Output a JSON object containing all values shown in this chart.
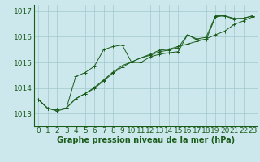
{
  "bg_color": "#cce8ec",
  "grid_color": "#a0c8cc",
  "line_color": "#1a5c1a",
  "marker_color": "#1a5c1a",
  "xlabel": "Graphe pression niveau de la mer (hPa)",
  "xlabel_fontsize": 7.0,
  "tick_fontsize": 6.5,
  "ylim": [
    1012.5,
    1017.25
  ],
  "xlim": [
    -0.5,
    23.5
  ],
  "yticks": [
    1013,
    1014,
    1015,
    1016,
    1017
  ],
  "xticks": [
    0,
    1,
    2,
    3,
    4,
    5,
    6,
    7,
    8,
    9,
    10,
    11,
    12,
    13,
    14,
    15,
    16,
    17,
    18,
    19,
    20,
    21,
    22,
    23
  ],
  "series1_x": [
    0,
    1,
    2,
    3,
    4,
    5,
    6,
    7,
    8,
    9,
    10,
    11,
    12,
    13,
    14,
    15,
    16,
    17,
    18,
    19,
    20,
    21,
    22,
    23
  ],
  "series1_y": [
    1013.55,
    1013.2,
    1013.1,
    1013.2,
    1014.45,
    1014.6,
    1014.85,
    1015.5,
    1015.62,
    1015.68,
    1015.0,
    1015.0,
    1015.22,
    1015.32,
    1015.38,
    1015.42,
    1016.08,
    1015.88,
    1015.88,
    1016.78,
    1016.82,
    1016.72,
    1016.72,
    1016.82
  ],
  "series2_x": [
    0,
    1,
    2,
    3,
    4,
    5,
    6,
    7,
    8,
    9,
    10,
    11,
    12,
    13,
    14,
    15,
    16,
    17,
    18,
    19,
    20,
    21,
    22,
    23
  ],
  "series2_y": [
    1013.55,
    1013.2,
    1013.15,
    1013.22,
    1013.58,
    1013.78,
    1013.98,
    1014.28,
    1014.58,
    1014.82,
    1015.02,
    1015.18,
    1015.32,
    1015.48,
    1015.52,
    1015.62,
    1015.72,
    1015.82,
    1015.92,
    1016.08,
    1016.22,
    1016.48,
    1016.62,
    1016.78
  ],
  "series3_x": [
    0,
    1,
    2,
    3,
    4,
    5,
    6,
    7,
    8,
    9,
    10,
    11,
    12,
    13,
    14,
    15,
    16,
    17,
    18,
    19,
    20,
    21,
    22,
    23
  ],
  "series3_y": [
    1013.55,
    1013.2,
    1013.15,
    1013.22,
    1013.58,
    1013.78,
    1014.02,
    1014.32,
    1014.62,
    1014.88,
    1015.02,
    1015.18,
    1015.28,
    1015.42,
    1015.48,
    1015.58,
    1016.08,
    1015.92,
    1015.98,
    1016.82,
    1016.82,
    1016.68,
    1016.72,
    1016.82
  ]
}
